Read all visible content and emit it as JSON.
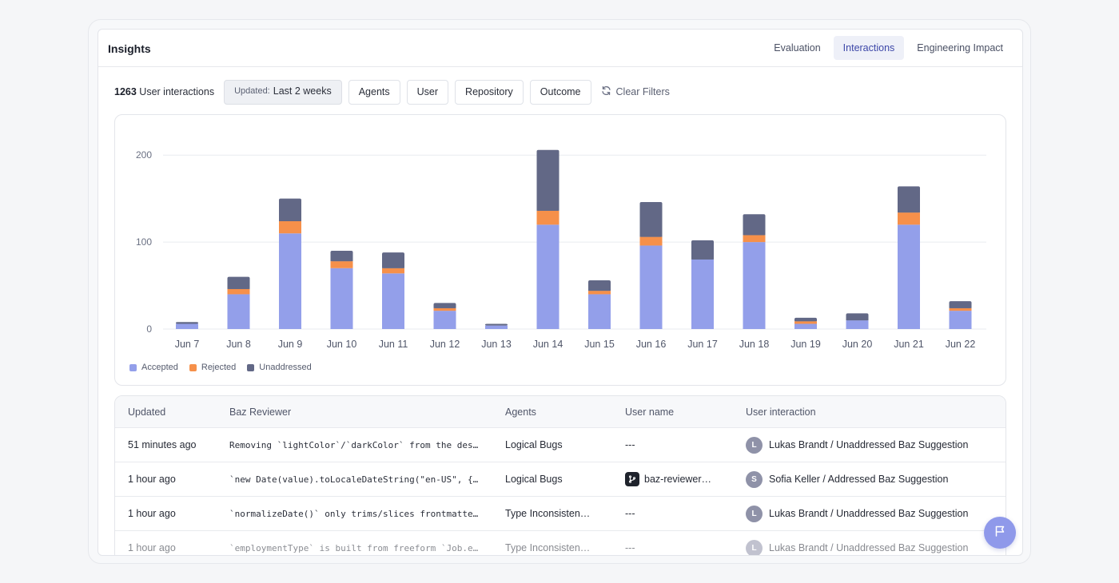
{
  "header": {
    "title": "Insights",
    "tabs": [
      {
        "label": "Evaluation",
        "active": false
      },
      {
        "label": "Interactions",
        "active": true
      },
      {
        "label": "Engineering Impact",
        "active": false
      }
    ]
  },
  "filters": {
    "count": "1263",
    "count_label": "User interactions",
    "updated_prefix": "Updated:",
    "updated_value": "Last 2 weeks",
    "agents": "Agents",
    "user": "User",
    "repository": "Repository",
    "outcome": "Outcome",
    "clear": "Clear Filters"
  },
  "chart_data": {
    "type": "bar",
    "stacked": true,
    "categories": [
      "Jun 7",
      "Jun 8",
      "Jun 9",
      "Jun 10",
      "Jun 11",
      "Jun 12",
      "Jun 13",
      "Jun 14",
      "Jun 15",
      "Jun 16",
      "Jun 17",
      "Jun 18",
      "Jun 19",
      "Jun 20",
      "Jun 21",
      "Jun 22"
    ],
    "series": [
      {
        "name": "Accepted",
        "color": "#939fea",
        "values": [
          6,
          40,
          110,
          70,
          64,
          21,
          4,
          120,
          40,
          96,
          80,
          100,
          6,
          10,
          120,
          21
        ]
      },
      {
        "name": "Rejected",
        "color": "#f6904a",
        "values": [
          0,
          6,
          14,
          8,
          6,
          3,
          0,
          16,
          4,
          10,
          0,
          8,
          3,
          0,
          14,
          3
        ]
      },
      {
        "name": "Unaddressed",
        "color": "#626886",
        "values": [
          2,
          14,
          26,
          12,
          18,
          6,
          2,
          70,
          12,
          40,
          22,
          24,
          4,
          8,
          30,
          8
        ]
      }
    ],
    "yticks": [
      0,
      100,
      200
    ],
    "ylim": [
      0,
      225
    ],
    "grid": true,
    "legend_position": "bottom-left"
  },
  "table": {
    "columns": [
      "Updated",
      "Baz Reviewer",
      "Agents",
      "User name",
      "User interaction"
    ],
    "rows": [
      {
        "updated": "51 minutes ago",
        "reviewer": "Removing `lightColor`/`darkColor` from the des…",
        "agent": "Logical Bugs",
        "user": "---",
        "bot": false,
        "avatar": "L",
        "interaction": "Lukas Brandt / Unaddressed Baz Suggestion"
      },
      {
        "updated": "1 hour ago",
        "reviewer": "`new Date(value).toLocaleDateString(\"en-US\", {…",
        "agent": "Logical Bugs",
        "user": "baz-reviewer…",
        "bot": true,
        "avatar": "S",
        "interaction": "Sofia Keller / Addressed Baz Suggestion"
      },
      {
        "updated": "1 hour ago",
        "reviewer": "`normalizeDate()` only trims/slices frontmatte…",
        "agent": "Type Inconsisten…",
        "user": "---",
        "bot": false,
        "avatar": "L",
        "interaction": "Lukas Brandt / Unaddressed Baz Suggestion"
      },
      {
        "updated": "1 hour ago",
        "reviewer": "`employmentType` is built from freeform `Job.e…",
        "agent": "Type Inconsisten…",
        "user": "---",
        "bot": false,
        "avatar": "L",
        "interaction": "Lukas Brandt / Unaddressed Baz Suggestion"
      }
    ]
  },
  "icons": {
    "clear": "refresh-icon",
    "fab": "flag-icon",
    "bot": "git-branch-icon"
  }
}
